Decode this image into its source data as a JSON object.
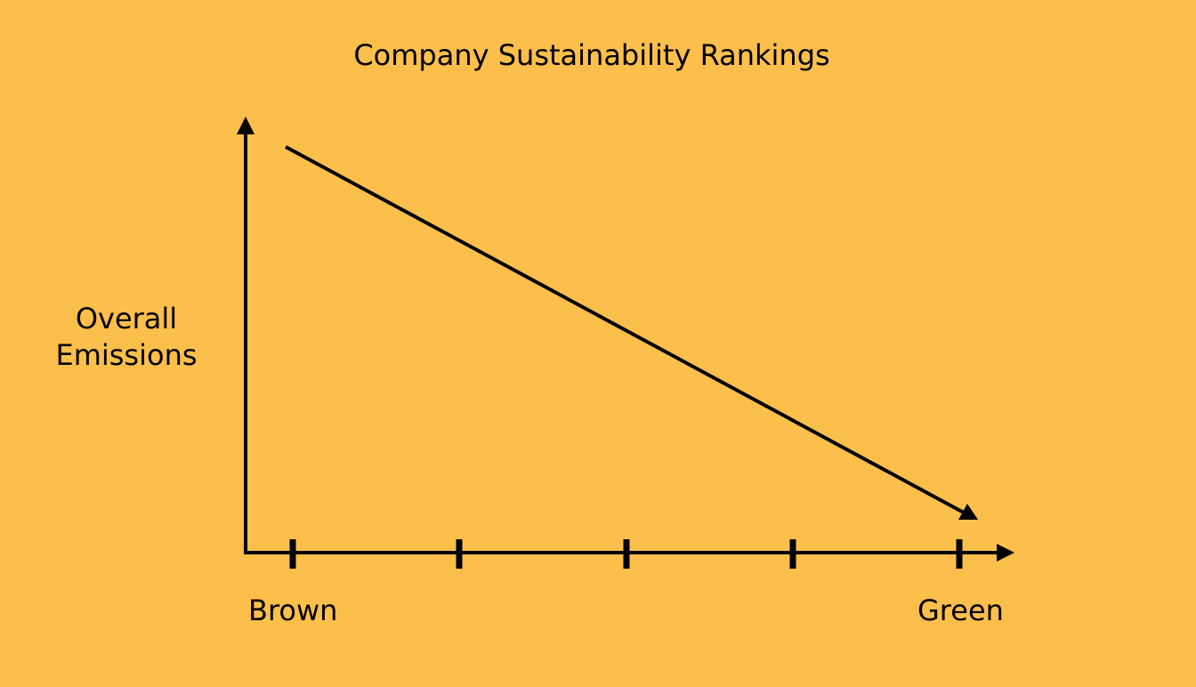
{
  "title": "Company Sustainability Rankings",
  "y_axis": {
    "label_lines": [
      "Overall",
      "Emissions"
    ]
  },
  "x_axis": {
    "left_label": "Brown",
    "right_label": "Green",
    "tick_count": 5
  },
  "colors": {
    "background": "#FDBF4B",
    "ink": "#000000"
  }
}
